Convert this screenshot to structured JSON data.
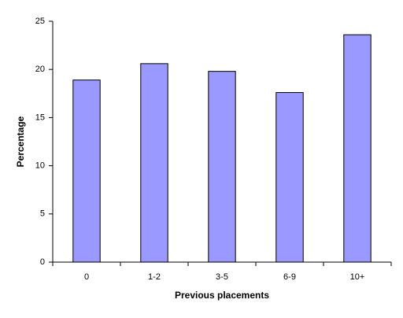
{
  "chart_data": {
    "type": "bar",
    "xlabel": "Previous placements",
    "ylabel": "Percentage",
    "categories": [
      "0",
      "1-2",
      "3-5",
      "6-9",
      "10+"
    ],
    "values": [
      18.9,
      20.6,
      19.8,
      17.6,
      23.6
    ],
    "color": "#9999ff",
    "ylim": [
      0,
      25
    ],
    "yticks": [
      0,
      5,
      10,
      15,
      20,
      25
    ],
    "grid": false
  }
}
